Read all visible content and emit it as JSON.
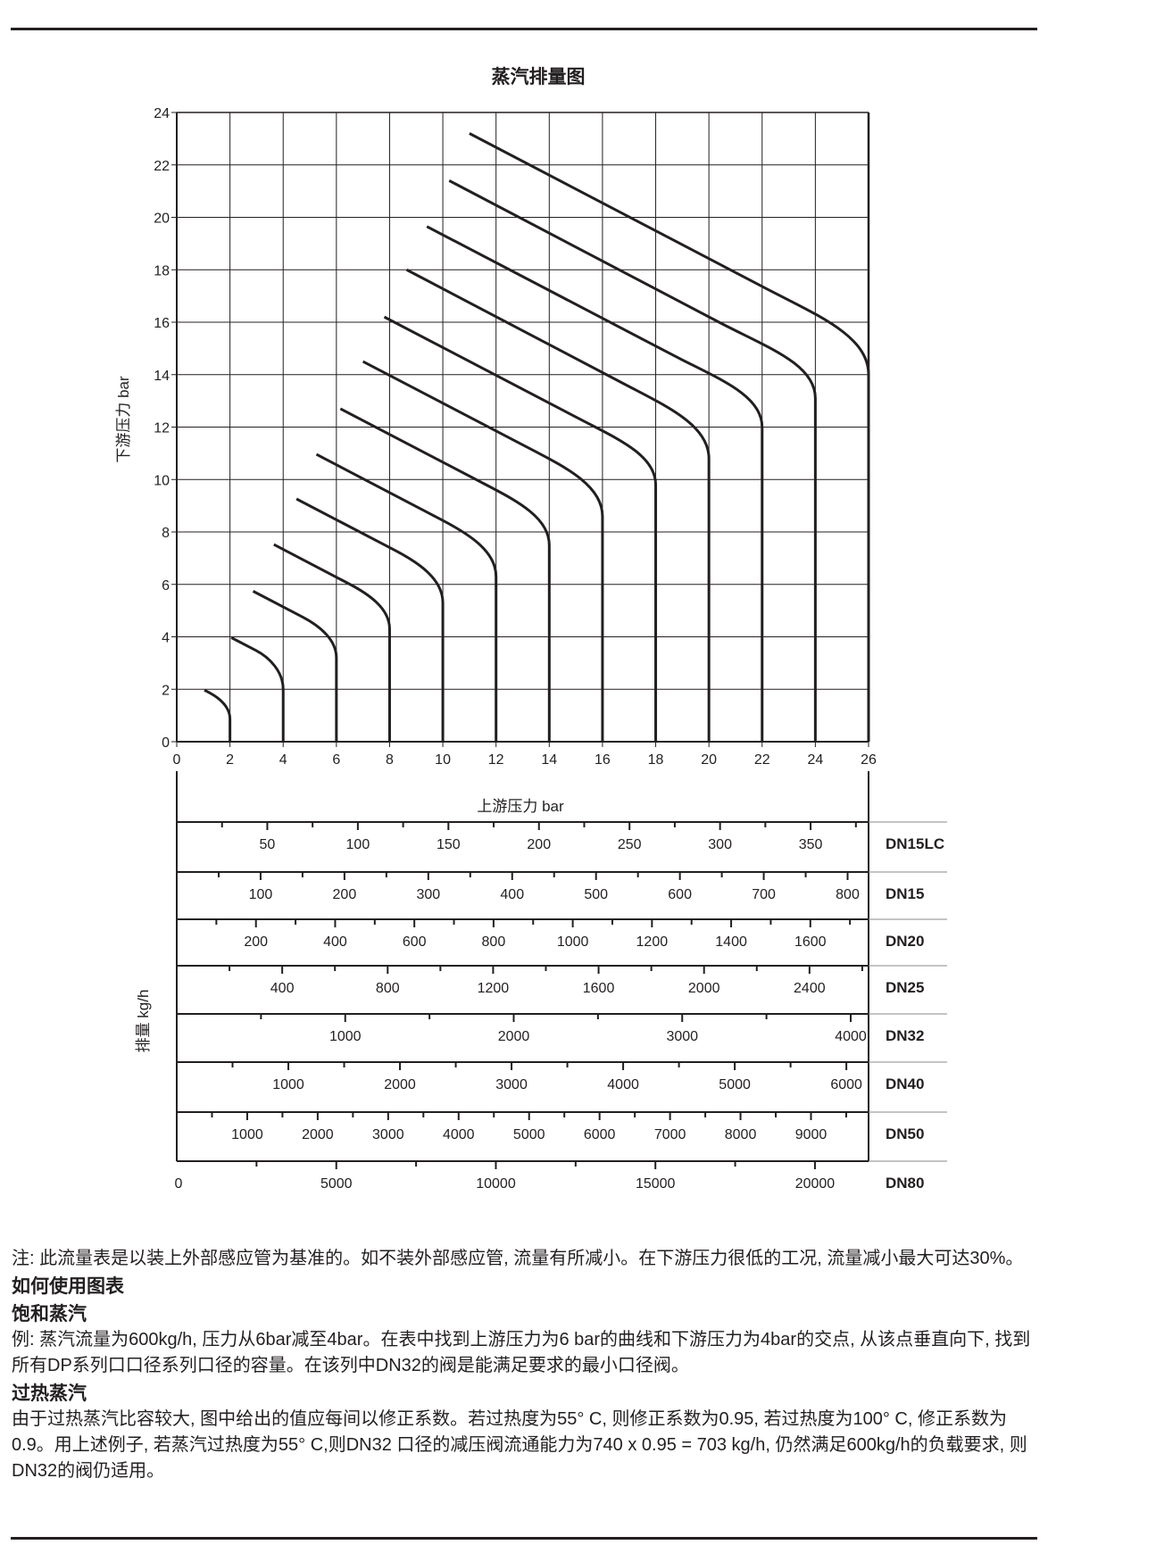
{
  "chart_data": [
    {
      "type": "line",
      "title": "蒸汽排量图",
      "xlabel": "上游压力 bar",
      "ylabel": "下游压力 bar",
      "xlim": [
        0,
        26
      ],
      "ylim": [
        0,
        24
      ],
      "x_ticks": [
        0,
        2,
        4,
        6,
        8,
        10,
        12,
        14,
        16,
        18,
        20,
        22,
        24,
        26
      ],
      "y_ticks": [
        0,
        2,
        4,
        6,
        8,
        10,
        12,
        14,
        16,
        18,
        20,
        22,
        24
      ],
      "grid": true,
      "line_color": "#231f20",
      "series": [
        {
          "upstream": 2,
          "points": [
            [
              1.04,
              1.97
            ],
            [
              1.24,
              1.86
            ],
            [
              2,
              0.87
            ],
            [
              2,
              0
            ]
          ]
        },
        {
          "upstream": 4,
          "points": [
            [
              2.05,
              3.97
            ],
            [
              2.98,
              3.48
            ],
            [
              4,
              2.0
            ],
            [
              4,
              0
            ]
          ]
        },
        {
          "upstream": 6,
          "points": [
            [
              2.87,
              5.74
            ],
            [
              4.72,
              4.76
            ],
            [
              6,
              3.2
            ],
            [
              6,
              0
            ]
          ]
        },
        {
          "upstream": 8,
          "points": [
            [
              3.65,
              7.52
            ],
            [
              6.46,
              6.03
            ],
            [
              8,
              4.3
            ],
            [
              8,
              0
            ]
          ]
        },
        {
          "upstream": 10,
          "points": [
            [
              4.5,
              9.26
            ],
            [
              8.2,
              7.3
            ],
            [
              10,
              5.3
            ],
            [
              10,
              0
            ]
          ]
        },
        {
          "upstream": 12,
          "points": [
            [
              5.25,
              10.96
            ],
            [
              9.94,
              8.47
            ],
            [
              12,
              6.3
            ],
            [
              12,
              0
            ]
          ]
        },
        {
          "upstream": 14,
          "points": [
            [
              6.15,
              12.7
            ],
            [
              11.68,
              9.77
            ],
            [
              14,
              7.5
            ],
            [
              14,
              0
            ]
          ]
        },
        {
          "upstream": 16,
          "points": [
            [
              7.0,
              14.5
            ],
            [
              13.42,
              11.1
            ],
            [
              16,
              8.6
            ],
            [
              16,
              0
            ]
          ]
        },
        {
          "upstream": 18,
          "points": [
            [
              7.8,
              16.2
            ],
            [
              15.16,
              12.3
            ],
            [
              18,
              9.8
            ],
            [
              18,
              0
            ]
          ]
        },
        {
          "upstream": 20,
          "points": [
            [
              8.64,
              18.0
            ],
            [
              16.9,
              13.6
            ],
            [
              20,
              10.8
            ],
            [
              20,
              0
            ]
          ]
        },
        {
          "upstream": 22,
          "points": [
            [
              9.4,
              19.65
            ],
            [
              18.64,
              14.75
            ],
            [
              22,
              12.0
            ],
            [
              22,
              0
            ]
          ]
        },
        {
          "upstream": 24,
          "points": [
            [
              10.24,
              21.4
            ],
            [
              20.38,
              16.0
            ],
            [
              24,
              13.1
            ],
            [
              24,
              0
            ]
          ]
        },
        {
          "upstream": 26,
          "points": [
            [
              11.0,
              23.2
            ],
            [
              22.12,
              17.3
            ],
            [
              26,
              14.0
            ],
            [
              26,
              0
            ]
          ]
        }
      ]
    },
    {
      "type": "table",
      "ylabel": "排量 kg/h",
      "rows": [
        {
          "label": "DN15LC",
          "range": [
            0,
            382
          ],
          "tick_step": 25,
          "labels": [
            50,
            100,
            150,
            200,
            250,
            300,
            350
          ]
        },
        {
          "label": "DN15",
          "range": [
            0,
            825
          ],
          "tick_step": 50,
          "labels": [
            100,
            200,
            300,
            400,
            500,
            600,
            700,
            800
          ]
        },
        {
          "label": "DN20",
          "range": [
            0,
            1747
          ],
          "tick_step": 100,
          "labels": [
            200,
            400,
            600,
            800,
            1000,
            1200,
            1400,
            1600
          ]
        },
        {
          "label": "DN25",
          "range": [
            0,
            2624
          ],
          "tick_step": 200,
          "labels": [
            400,
            800,
            1200,
            1600,
            2000,
            2400
          ]
        },
        {
          "label": "DN32",
          "range": [
            0,
            4106
          ],
          "tick_step": 500,
          "labels": [
            1000,
            2000,
            3000,
            4000
          ]
        },
        {
          "label": "DN40",
          "range": [
            0,
            6199
          ],
          "tick_step": 500,
          "labels": [
            1000,
            2000,
            3000,
            4000,
            5000,
            6000
          ]
        },
        {
          "label": "DN50",
          "range": [
            0,
            9817
          ],
          "tick_step": 500,
          "labels": [
            1000,
            2000,
            3000,
            4000,
            5000,
            6000,
            7000,
            8000,
            9000
          ]
        },
        {
          "label": "DN80",
          "range": [
            0,
            21680
          ],
          "tick_step": 2500,
          "labels": [
            0,
            5000,
            10000,
            15000,
            20000
          ]
        }
      ]
    }
  ],
  "notes": {
    "note": "注: 此流量表是以装上外部感应管为基准的。如不装外部感应管, 流量有所减小。在下游压力很低的工况, 流量减小最大可达30%。",
    "heading": "如何使用图表",
    "saturated_heading": "饱和蒸汽",
    "saturated_text": "例: 蒸汽流量为600kg/h, 压力从6bar减至4bar。在表中找到上游压力为6 bar的曲线和下游压力为4bar的交点, 从该点垂直向下, 找到所有DP系列口口径系列口径的容量。在该列中DN32的阀是能满足要求的最小口径阀。",
    "superheated_heading": "过热蒸汽",
    "superheated_text": "由于过热蒸汽比容较大, 图中给出的值应每间以修正系数。若过热度为55° C, 则修正系数为0.95, 若过热度为100° C, 修正系数为0.9。用上述例子, 若蒸汽过热度为55° C,则DN32 口径的减压阀流通能力为740 x 0.95 = 703 kg/h, 仍然满足600kg/h的负载要求, 则DN32的阀仍适用。"
  }
}
